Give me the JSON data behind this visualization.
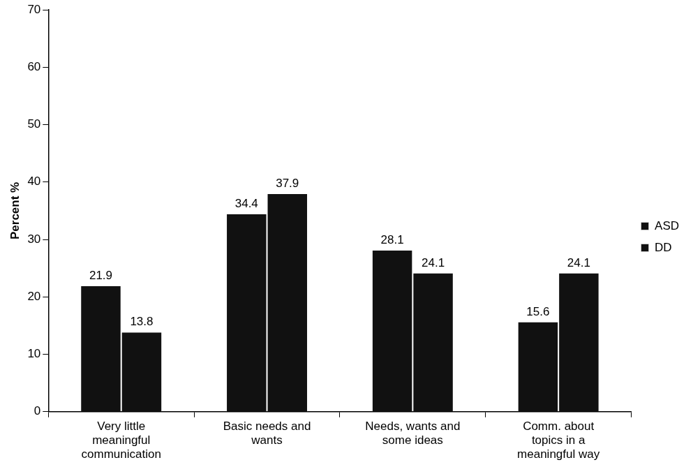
{
  "chart_data": {
    "type": "bar",
    "ylabel": "Percent %",
    "categories": [
      "Very little meaningful communication",
      "Basic needs and wants",
      "Needs, wants and some ideas",
      "Comm. about topics in a meaningful way"
    ],
    "series": [
      {
        "name": "ASD",
        "color": "#111111",
        "values": [
          21.9,
          34.4,
          28.1,
          15.6
        ]
      },
      {
        "name": "DD",
        "color": "#111111",
        "values": [
          13.8,
          37.9,
          24.1,
          24.1
        ]
      }
    ],
    "ylim": [
      0,
      70
    ],
    "yticks": [
      0,
      10,
      20,
      30,
      40,
      50,
      60,
      70
    ],
    "grid": false,
    "legend": "right",
    "data_labels": true
  }
}
